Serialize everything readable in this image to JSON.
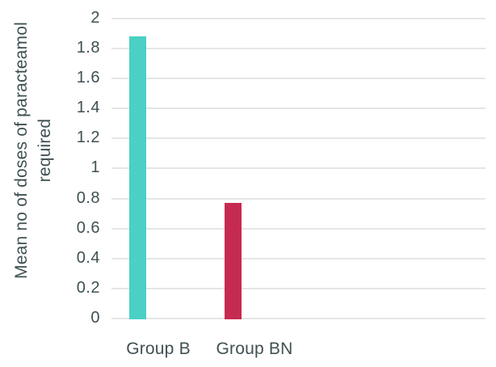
{
  "page": {
    "background": "#ffffff"
  },
  "chart_data": {
    "type": "bar",
    "title": "",
    "xlabel": "",
    "ylabel": "Mean no of doses of paracteamol required",
    "ylabel_lines": [
      "Mean no of doses of paracteamol",
      "required"
    ],
    "categories": [
      "Group B",
      "Group BN"
    ],
    "values": [
      1.88,
      0.77
    ],
    "ylim": [
      0,
      2
    ],
    "ytick_step": 0.2,
    "yticks": [
      2,
      1.8,
      1.6,
      1.4,
      1.2,
      1,
      0.8,
      0.6,
      0.4,
      0.2,
      0
    ],
    "grid": "horizontal",
    "legend": "none",
    "colors": {
      "bars": [
        "#4ad0c4",
        "#c72a50"
      ],
      "text": "#3f5053",
      "gridline": "#e3e7e5"
    }
  }
}
